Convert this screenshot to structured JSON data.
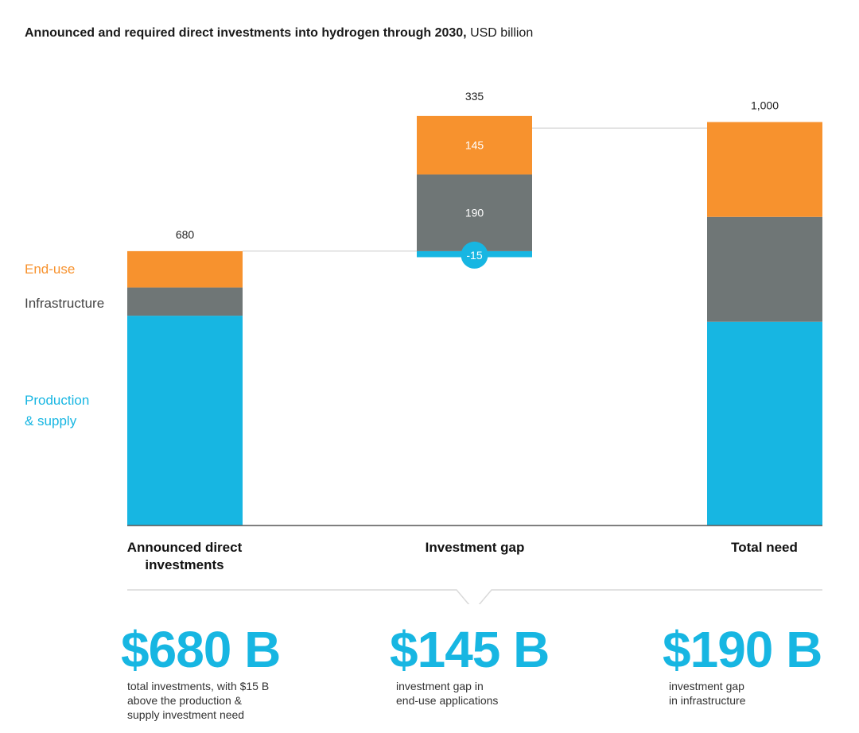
{
  "title": {
    "main": "Announced and required direct investments into hydrogen through 2030,",
    "unit": "USD billion"
  },
  "colors": {
    "production": "#17b6e2",
    "infrastructure": "#6f7676",
    "end_use": "#f7922e",
    "line": "#cccccc",
    "axis": "#555555"
  },
  "legend": {
    "end_use": "End-use",
    "infrastructure": "Infrastructure",
    "production_line1": "Production",
    "production_line2": "& supply"
  },
  "chart_data": {
    "type": "bar",
    "subtype": "waterfall",
    "ylim": [
      0,
      1000
    ],
    "categories": [
      "Announced direct investments",
      "Investment gap",
      "Total need"
    ],
    "category_labels": [
      [
        "Announced direct",
        "investments"
      ],
      [
        "Investment gap"
      ],
      [
        "Total need"
      ]
    ],
    "series": [
      {
        "name": "Production & supply",
        "values": [
          520,
          -15,
          505
        ]
      },
      {
        "name": "Infrastructure",
        "values": [
          70,
          190,
          260
        ]
      },
      {
        "name": "End-use",
        "values": [
          90,
          145,
          235
        ]
      }
    ],
    "totals": [
      "680",
      "335",
      "1,000"
    ],
    "segment_labels": [
      {
        "bar": 1,
        "series": "End-use",
        "text": "145"
      },
      {
        "bar": 1,
        "series": "Infrastructure",
        "text": "190"
      },
      {
        "bar": 1,
        "series": "Production & supply",
        "text": "-15"
      }
    ]
  },
  "stats": [
    {
      "value": "$680 B",
      "desc": "total investments, with $15 B\nabove the production &\nsupply investment need"
    },
    {
      "value": "$145 B",
      "desc": "investment gap in\nend-use applications"
    },
    {
      "value": "$190 B",
      "desc": "investment gap\nin infrastructure"
    }
  ]
}
